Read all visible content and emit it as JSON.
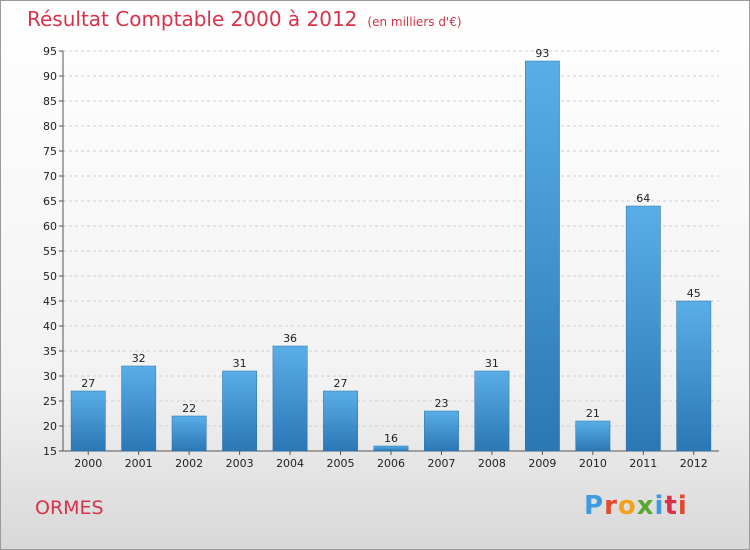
{
  "colors": {
    "title": "#d7324a",
    "bar_top": "#5aaee8",
    "bar_bottom": "#2a77b5",
    "grid": "#cfcfcf",
    "logo": [
      "#3d9be0",
      "#e24a2c",
      "#f0a21e",
      "#5aa832",
      "#3d9be0",
      "#d7324a",
      "#e24a2c"
    ]
  },
  "header": {
    "title": "Résultat Comptable 2000 à 2012",
    "subtitle": "(en milliers d'€)"
  },
  "footer": {
    "location": "ORMES",
    "logo_text": "Proxiti"
  },
  "chart_data": {
    "type": "bar",
    "title": "Résultat Comptable 2000 à 2012",
    "subtitle": "(en milliers d'€)",
    "xlabel": "",
    "ylabel": "",
    "categories": [
      "2000",
      "2001",
      "2002",
      "2003",
      "2004",
      "2005",
      "2006",
      "2007",
      "2008",
      "2009",
      "2010",
      "2011",
      "2012"
    ],
    "values": [
      27,
      32,
      22,
      31,
      36,
      27,
      16,
      23,
      31,
      93,
      21,
      64,
      45
    ],
    "ylim": [
      15,
      95
    ],
    "yticks": [
      15,
      20,
      25,
      30,
      35,
      40,
      45,
      50,
      55,
      60,
      65,
      70,
      75,
      80,
      85,
      90,
      95
    ],
    "grid": true,
    "legend": "none"
  }
}
